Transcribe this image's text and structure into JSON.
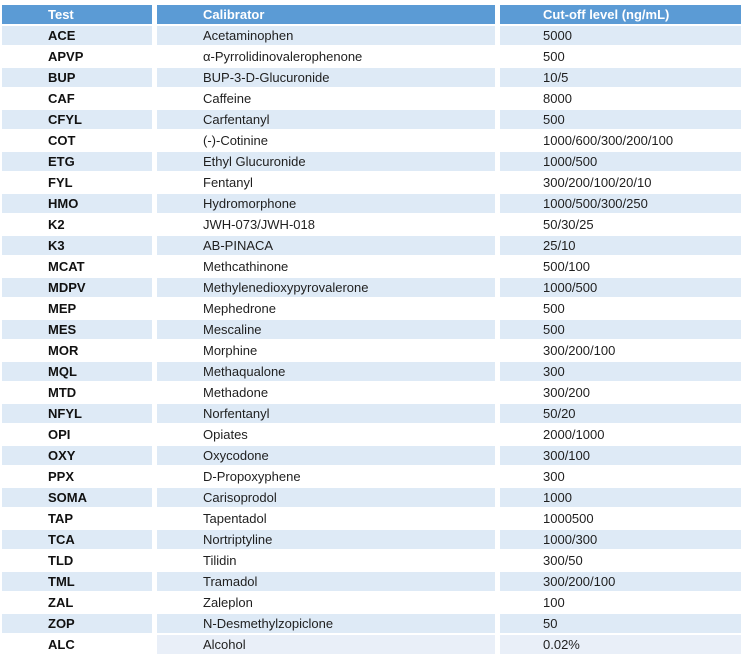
{
  "colors": {
    "header_bg": "#5B9BD5",
    "band_row_bg": "#DEEAF6",
    "plain_row_bg": "#FFFFFF",
    "last_row_highlight_bg": "#E9EFF8",
    "header_text": "#FFFFFF",
    "body_text": "#1F1F1F"
  },
  "table": {
    "columns": [
      {
        "key": "test",
        "label": "Test"
      },
      {
        "key": "calibrator",
        "label": "Calibrator"
      },
      {
        "key": "cutoff",
        "label": "Cut-off level (ng/mL)"
      }
    ],
    "rows": [
      {
        "test": "ACE",
        "calibrator": "Acetaminophen",
        "cutoff": "5000"
      },
      {
        "test": "APVP",
        "calibrator": "α-Pyrrolidinovalerophenone",
        "cutoff": "500"
      },
      {
        "test": "BUP",
        "calibrator": "BUP-3-D-Glucuronide",
        "cutoff": "10/5"
      },
      {
        "test": "CAF",
        "calibrator": "Caffeine",
        "cutoff": "8000"
      },
      {
        "test": "CFYL",
        "calibrator": "Carfentanyl",
        "cutoff": "500"
      },
      {
        "test": "COT",
        "calibrator": "(-)-Cotinine",
        "cutoff": "1000/600/300/200/100"
      },
      {
        "test": "ETG",
        "calibrator": "Ethyl Glucuronide",
        "cutoff": "1000/500"
      },
      {
        "test": "FYL",
        "calibrator": "Fentanyl",
        "cutoff": "300/200/100/20/10"
      },
      {
        "test": "HMO",
        "calibrator": "Hydromorphone",
        "cutoff": "1000/500/300/250"
      },
      {
        "test": "K2",
        "calibrator": "JWH-073/JWH-018",
        "cutoff": "50/30/25"
      },
      {
        "test": "K3",
        "calibrator": "AB-PINACA",
        "cutoff": "25/10"
      },
      {
        "test": "MCAT",
        "calibrator": "Methcathinone",
        "cutoff": "500/100"
      },
      {
        "test": "MDPV",
        "calibrator": "Methylenedioxypyrovalerone",
        "cutoff": "1000/500"
      },
      {
        "test": "MEP",
        "calibrator": "Mephedrone",
        "cutoff": "500"
      },
      {
        "test": "MES",
        "calibrator": "Mescaline",
        "cutoff": "500"
      },
      {
        "test": "MOR",
        "calibrator": "Morphine",
        "cutoff": "300/200/100"
      },
      {
        "test": "MQL",
        "calibrator": "Methaqualone",
        "cutoff": "300"
      },
      {
        "test": "MTD",
        "calibrator": "Methadone",
        "cutoff": "300/200"
      },
      {
        "test": "NFYL",
        "calibrator": "Norfentanyl",
        "cutoff": "50/20"
      },
      {
        "test": "OPI",
        "calibrator": "Opiates",
        "cutoff": "2000/1000"
      },
      {
        "test": "OXY",
        "calibrator": "Oxycodone",
        "cutoff": "300/100"
      },
      {
        "test": "PPX",
        "calibrator": "D-Propoxyphene",
        "cutoff": "300"
      },
      {
        "test": "SOMA",
        "calibrator": "Carisoprodol",
        "cutoff": "1000"
      },
      {
        "test": "TAP",
        "calibrator": "Tapentadol",
        "cutoff": "1000500"
      },
      {
        "test": "TCA",
        "calibrator": "Nortriptyline",
        "cutoff": "1000/300"
      },
      {
        "test": "TLD",
        "calibrator": "Tilidin",
        "cutoff": "300/50"
      },
      {
        "test": "TML",
        "calibrator": "Tramadol",
        "cutoff": "300/200/100"
      },
      {
        "test": "ZAL",
        "calibrator": "Zaleplon",
        "cutoff": "100"
      },
      {
        "test": "ZOP",
        "calibrator": "N-Desmethylzopiclone",
        "cutoff": "50"
      },
      {
        "test": "ALC",
        "calibrator": "Alcohol",
        "cutoff": "0.02%"
      }
    ]
  }
}
